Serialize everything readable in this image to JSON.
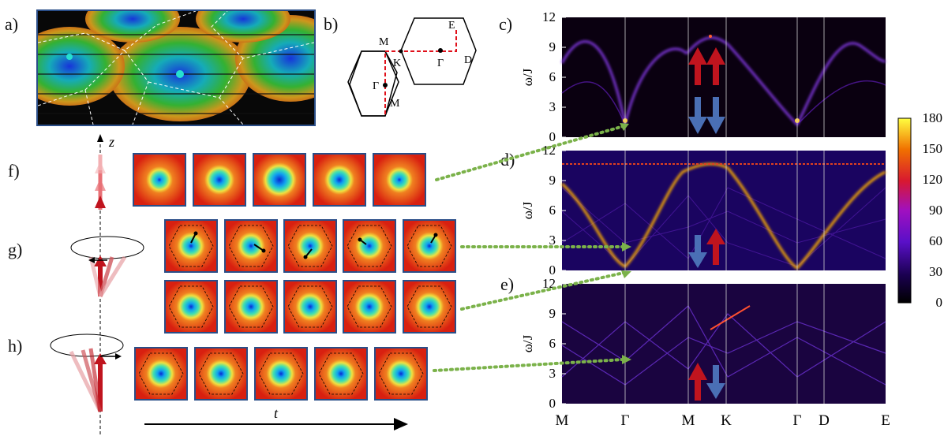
{
  "panel_labels": {
    "a": "a)",
    "b": "b)",
    "c": "c)",
    "d": "d)",
    "e": "e)",
    "f": "f)",
    "g": "g)",
    "h": "h)"
  },
  "bz_labels": {
    "M_top": "M",
    "M_bottom": "M",
    "K": "K",
    "Gamma_left": "Γ",
    "Gamma_right": "Γ",
    "E": "E",
    "D": "D"
  },
  "spin_axis_label": "z",
  "time_axis_label": "t",
  "y_axis_label": "ω/J",
  "y_ticks": [
    "0",
    "3",
    "6",
    "9",
    "12"
  ],
  "x_ticks": [
    "M",
    "Γ",
    "M",
    "K",
    "Γ",
    "D",
    "E"
  ],
  "colorbar_ticks": [
    "0",
    "30",
    "60",
    "90",
    "120",
    "150",
    "180"
  ],
  "colors": {
    "frame": "#2a4e88",
    "arrow_red": "#c0141e",
    "arrow_blue": "#4a6fb5",
    "dotted_green": "#7bb24a",
    "dash_red": "#e0101a"
  }
}
